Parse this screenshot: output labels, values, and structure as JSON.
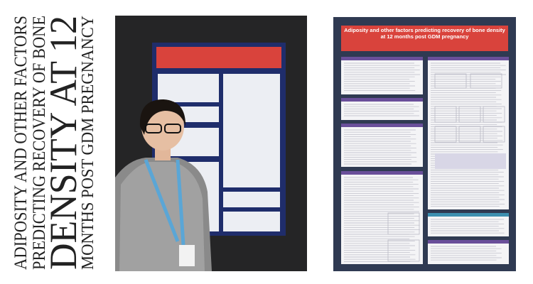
{
  "heading": {
    "lines": [
      "ADIPOSITY AND OTHER FACTORS",
      "PREDICTING RECOVERY OF BONE",
      "DENSITY AT 12",
      "MONTHS POST GDM PREGNANCY"
    ]
  },
  "poster": {
    "title": "Adiposity and other factors predicting recovery of bone density at 12 months post GDM pregnancy"
  }
}
